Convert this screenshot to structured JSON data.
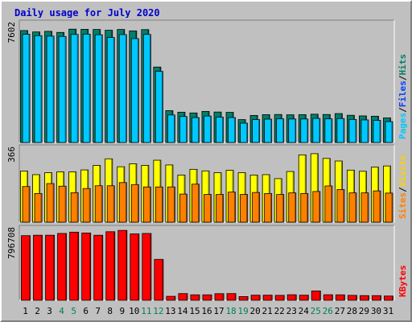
{
  "chart_data": {
    "type": "bar",
    "title": "Daily usage for July 2020",
    "categories": [
      "1",
      "2",
      "3",
      "4",
      "5",
      "6",
      "7",
      "8",
      "9",
      "10",
      "11",
      "12",
      "13",
      "14",
      "15",
      "16",
      "17",
      "18",
      "19",
      "20",
      "21",
      "22",
      "23",
      "24",
      "25",
      "26",
      "27",
      "28",
      "29",
      "30",
      "31"
    ],
    "weekend_days": [
      "4",
      "5",
      "11",
      "12",
      "18",
      "19",
      "25",
      "26"
    ],
    "panels": [
      {
        "name": "hits-files-pages",
        "ymax_label": "7602",
        "ymax": 7602,
        "legend": [
          "Pages",
          "/",
          "Files",
          "/",
          "Hits"
        ],
        "legend_colors": [
          "#00c8ff",
          "#000000",
          "#0040ff",
          "#000000",
          "#00806a"
        ],
        "series": [
          {
            "name": "Hits",
            "color": "#00806a",
            "values": [
              7240,
              7150,
              7190,
              7120,
              7330,
              7320,
              7310,
              7260,
              7310,
              7220,
              7300,
              4880,
              2060,
              1960,
              1910,
              2010,
              1970,
              1950,
              1480,
              1750,
              1800,
              1810,
              1790,
              1800,
              1830,
              1810,
              1870,
              1760,
              1720,
              1700,
              1590
            ]
          },
          {
            "name": "Files",
            "color": "#00c8ff",
            "values": [
              7000,
              6910,
              6880,
              6860,
              6990,
              7010,
              6970,
              6790,
              6980,
              6720,
              6990,
              4600,
              1780,
              1680,
              1610,
              1710,
              1640,
              1610,
              1250,
              1480,
              1510,
              1530,
              1520,
              1520,
              1560,
              1530,
              1550,
              1490,
              1460,
              1430,
              1350
            ]
          }
        ]
      },
      {
        "name": "visits-sites",
        "ymax_label": "366",
        "ymax": 366,
        "legend": [
          "Sites",
          "/",
          "Visits"
        ],
        "legend_colors": [
          "#ff8000",
          "#000000",
          "#ffd000"
        ],
        "series": [
          {
            "name": "Visits",
            "color": "#ffff00",
            "values": [
              258,
              240,
              250,
              254,
              254,
              264,
              287,
              320,
              280,
              295,
              287,
              313,
              289,
              238,
              267,
              259,
              250,
              262,
              250,
              238,
              240,
              220,
              256,
              340,
              346,
              322,
              309,
              263,
              257,
              278,
              284
            ]
          },
          {
            "name": "Sites",
            "color": "#ff8000",
            "values": [
              180,
              145,
              195,
              182,
              149,
              170,
              184,
              184,
              200,
              190,
              178,
              178,
              178,
              142,
              192,
              140,
              140,
              152,
              140,
              150,
              145,
              140,
              148,
              145,
              155,
              183,
              165,
              148,
              148,
              158,
              147
            ]
          }
        ]
      },
      {
        "name": "kbytes",
        "ymax_label": "796708",
        "ymax": 796708,
        "legend": [
          "KBytes"
        ],
        "legend_colors": [
          "#ff0000"
        ],
        "series": [
          {
            "name": "KBytes",
            "color": "#ff0000",
            "values": [
              735000,
              740000,
              740000,
              760000,
              775000,
              765000,
              740000,
              780000,
              795000,
              755000,
              760000,
              465000,
              45000,
              76000,
              62000,
              62000,
              75000,
              76000,
              42000,
              58000,
              58000,
              56000,
              63000,
              58000,
              106000,
              63000,
              62000,
              56000,
              53000,
              53000,
              48000
            ]
          }
        ]
      }
    ]
  }
}
